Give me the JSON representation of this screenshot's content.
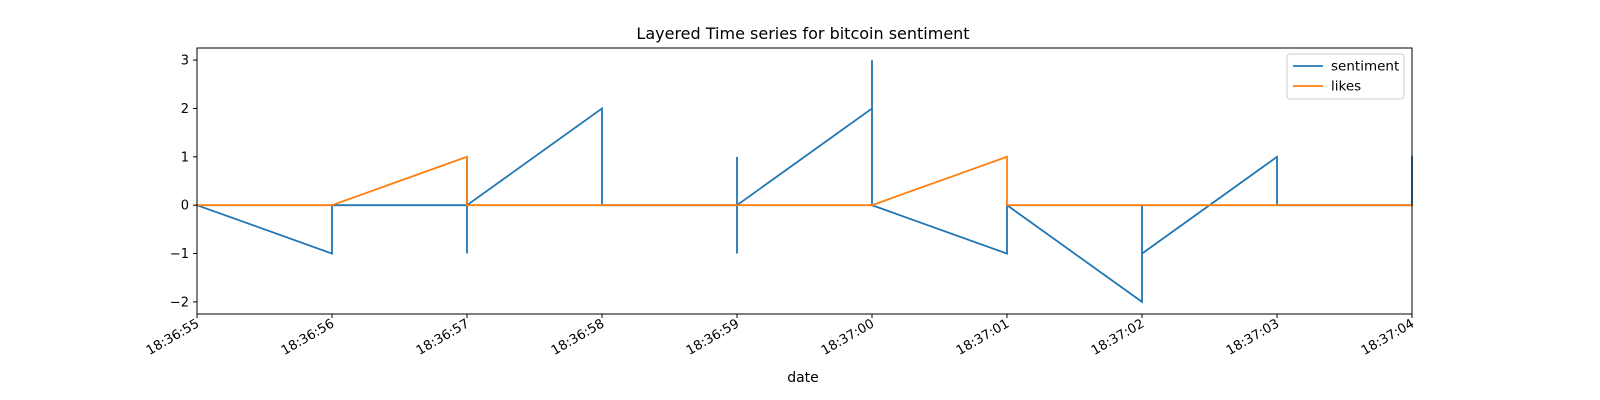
{
  "chart_data": {
    "type": "line",
    "title": "Layered Time series for bitcoin sentiment",
    "xlabel": "date",
    "ylabel": "",
    "x_tick_labels": [
      "18:36:55",
      "18:36:56",
      "18:36:57",
      "18:36:58",
      "18:36:59",
      "18:37:00",
      "18:37:01",
      "18:37:02",
      "18:37:03",
      "18:37:04"
    ],
    "xlim": [
      "18:36:55",
      "18:37:04"
    ],
    "y_ticks": [
      -2,
      -1,
      0,
      1,
      2,
      3
    ],
    "y_tick_labels": [
      "−2",
      "−1",
      "0",
      "1",
      "2",
      "3"
    ],
    "ylim": [
      -2.25,
      3.25
    ],
    "grid": false,
    "legend_position": "top-right",
    "series": [
      {
        "name": "sentiment",
        "color": "#1f77b4",
        "points": [
          [
            "18:36:55",
            0
          ],
          [
            "18:36:56",
            -1
          ],
          [
            "18:36:56",
            0
          ],
          [
            "18:36:57",
            0
          ],
          [
            "18:36:57",
            1
          ],
          [
            "18:36:57",
            -1
          ],
          [
            "18:36:57",
            0
          ],
          [
            "18:36:58",
            2
          ],
          [
            "18:36:58",
            0
          ],
          [
            "18:36:59",
            0
          ],
          [
            "18:36:59",
            1
          ],
          [
            "18:36:59",
            -1
          ],
          [
            "18:36:59",
            0
          ],
          [
            "18:37:00",
            2
          ],
          [
            "18:37:00",
            3
          ],
          [
            "18:37:00",
            0
          ],
          [
            "18:37:01",
            -1
          ],
          [
            "18:37:01",
            0
          ],
          [
            "18:37:02",
            -2
          ],
          [
            "18:37:02",
            0
          ],
          [
            "18:37:02",
            -1
          ],
          [
            "18:37:03",
            1
          ],
          [
            "18:37:03",
            0
          ],
          [
            "18:37:04",
            0
          ],
          [
            "18:37:04",
            1
          ]
        ]
      },
      {
        "name": "likes",
        "color": "#ff7f0e",
        "points": [
          [
            "18:36:55",
            0
          ],
          [
            "18:36:56",
            0
          ],
          [
            "18:36:57",
            1
          ],
          [
            "18:36:57",
            0
          ],
          [
            "18:36:58",
            0
          ],
          [
            "18:36:59",
            0
          ],
          [
            "18:37:00",
            0
          ],
          [
            "18:37:01",
            1
          ],
          [
            "18:37:01",
            0
          ],
          [
            "18:37:02",
            0
          ],
          [
            "18:37:03",
            0
          ],
          [
            "18:37:04",
            0
          ]
        ]
      }
    ]
  }
}
